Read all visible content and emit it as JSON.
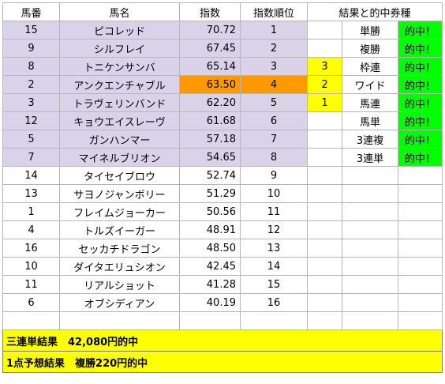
{
  "headers": [
    "馬番",
    "馬名",
    "指数",
    "指数順位",
    "結果と的中券種"
  ],
  "rows": [
    {
      "no": "15",
      "name": "ピコレッド",
      "score": "70.72",
      "rank": "1",
      "r1": "",
      "r2": "単勝",
      "r3": "的中！"
    },
    {
      "no": "9",
      "name": "シルフレイ",
      "score": "67.45",
      "rank": "2",
      "r1": "",
      "r2": "複勝",
      "r3": "的中！"
    },
    {
      "no": "8",
      "name": "トニケンサンバ",
      "score": "65.14",
      "rank": "3",
      "r1": "3",
      "r2": "枠連",
      "r3": "的中！"
    },
    {
      "no": "2",
      "name": "アンクエンチャブル",
      "score": "63.50",
      "rank": "4",
      "r1": "2",
      "r2": "ワイド",
      "r3": "的中！"
    },
    {
      "no": "3",
      "name": "トラヴェリンバンド",
      "score": "62.20",
      "rank": "5",
      "r1": "1",
      "r2": "馬連",
      "r3": "的中！"
    },
    {
      "no": "12",
      "name": "キョウエイスレーヴ",
      "score": "61.68",
      "rank": "6",
      "r1": "",
      "r2": "馬単",
      "r3": "的中！"
    },
    {
      "no": "5",
      "name": "ガンハンマー",
      "score": "57.18",
      "rank": "7",
      "r1": "",
      "r2": "3連複",
      "r3": "的中！"
    },
    {
      "no": "7",
      "name": "マイネルブリオン",
      "score": "54.65",
      "rank": "8",
      "r1": "",
      "r2": "3連単",
      "r3": "的中！"
    },
    {
      "no": "14",
      "name": "タイセイブロウ",
      "score": "52.74",
      "rank": "9",
      "r1": "",
      "r2": "",
      "r3": ""
    },
    {
      "no": "13",
      "name": "サヨノジャンボリー",
      "score": "51.29",
      "rank": "10",
      "r1": "",
      "r2": "",
      "r3": ""
    },
    {
      "no": "1",
      "name": "フレイムジョーカー",
      "score": "50.56",
      "rank": "11",
      "r1": "",
      "r2": "",
      "r3": ""
    },
    {
      "no": "4",
      "name": "トルズイーガー",
      "score": "48.91",
      "rank": "12",
      "r1": "",
      "r2": "",
      "r3": ""
    },
    {
      "no": "16",
      "name": "セッカチドラゴン",
      "score": "48.50",
      "rank": "13",
      "r1": "",
      "r2": "",
      "r3": ""
    },
    {
      "no": "10",
      "name": "ダイタエリュシオン",
      "score": "42.45",
      "rank": "14",
      "r1": "",
      "r2": "",
      "r3": ""
    },
    {
      "no": "11",
      "name": "リアルショット",
      "score": "41.28",
      "rank": "15",
      "r1": "",
      "r2": "",
      "r3": ""
    },
    {
      "no": "6",
      "name": "オブシディアン",
      "score": "40.19",
      "rank": "16",
      "r1": "",
      "r2": "",
      "r3": ""
    },
    {
      "no": "",
      "name": "",
      "score": "",
      "rank": "",
      "r1": "",
      "r2": "",
      "r3": ""
    }
  ],
  "footer": {
    "line1": "三連単結果　42,080円的中",
    "line2": "1点予想結果　複勝220円的中"
  },
  "colors": {
    "lavender": "#d9d2e9",
    "orange": "#ff9900",
    "yellow": "#ffff00",
    "green": "#00ff00"
  }
}
